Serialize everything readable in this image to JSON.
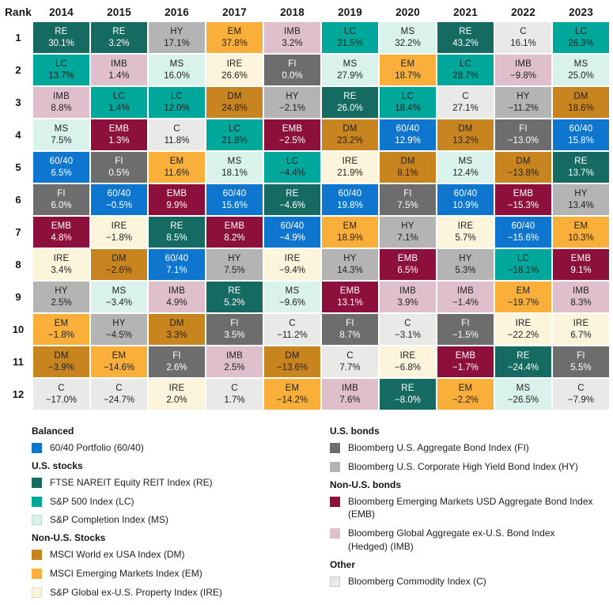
{
  "accent_text_dark": "#222222",
  "accent_text_light": "#ffffff",
  "assets": {
    "60/40": {
      "color": "#0f76d0",
      "text": "#ffffff"
    },
    "RE": {
      "color": "#156a62",
      "text": "#ffffff"
    },
    "LC": {
      "color": "#00a79b",
      "text": "#222222"
    },
    "MS": {
      "color": "#d9f2ec",
      "text": "#222222",
      "swatch_border": "#c2d6d1"
    },
    "DM": {
      "color": "#c8851f",
      "text": "#222222"
    },
    "EM": {
      "color": "#f9af3a",
      "text": "#222222"
    },
    "IRE": {
      "color": "#fdf4dc",
      "text": "#222222",
      "swatch_border": "#ddd5bf"
    },
    "FI": {
      "color": "#6d6d6d",
      "text": "#ffffff"
    },
    "HY": {
      "color": "#b4b4b4",
      "text": "#222222"
    },
    "EMB": {
      "color": "#8d103c",
      "text": "#ffffff"
    },
    "IMB": {
      "color": "#e0bfcd",
      "text": "#222222"
    },
    "C": {
      "color": "#e9e9e7",
      "text": "#222222",
      "swatch_border": "#c9c9c9"
    }
  },
  "chart_data": {
    "type": "table",
    "title": "",
    "columns": [
      "Rank",
      "2014",
      "2015",
      "2016",
      "2017",
      "2018",
      "2019",
      "2020",
      "2021",
      "2022",
      "2023"
    ],
    "rows": [
      {
        "rank": "1",
        "cells": [
          [
            "RE",
            "30.1%"
          ],
          [
            "RE",
            "3.2%"
          ],
          [
            "HY",
            "17.1%"
          ],
          [
            "EM",
            "37.8%"
          ],
          [
            "IMB",
            "3.2%"
          ],
          [
            "LC",
            "31.5%"
          ],
          [
            "MS",
            "32.2%"
          ],
          [
            "RE",
            "43.2%"
          ],
          [
            "C",
            "16.1%"
          ],
          [
            "LC",
            "26.3%"
          ]
        ]
      },
      {
        "rank": "2",
        "cells": [
          [
            "LC",
            "13.7%"
          ],
          [
            "IMB",
            "1.4%"
          ],
          [
            "MS",
            "16.0%"
          ],
          [
            "IRE",
            "26.6%"
          ],
          [
            "FI",
            "0.0%"
          ],
          [
            "MS",
            "27.9%"
          ],
          [
            "EM",
            "18.7%"
          ],
          [
            "LC",
            "28.7%"
          ],
          [
            "IMB",
            "−9.8%"
          ],
          [
            "MS",
            "25.0%"
          ]
        ]
      },
      {
        "rank": "3",
        "cells": [
          [
            "IMB",
            "8.8%"
          ],
          [
            "LC",
            "1.4%"
          ],
          [
            "LC",
            "12.0%"
          ],
          [
            "DM",
            "24.8%"
          ],
          [
            "HY",
            "−2.1%"
          ],
          [
            "RE",
            "26.0%"
          ],
          [
            "LC",
            "18.4%"
          ],
          [
            "C",
            "27.1%"
          ],
          [
            "HY",
            "−11.2%"
          ],
          [
            "DM",
            "18.6%"
          ]
        ]
      },
      {
        "rank": "4",
        "cells": [
          [
            "MS",
            "7.5%"
          ],
          [
            "EMB",
            "1.3%"
          ],
          [
            "C",
            "11.8%"
          ],
          [
            "LC",
            "21.8%"
          ],
          [
            "EMB",
            "−2.5%"
          ],
          [
            "DM",
            "23.2%"
          ],
          [
            "60/40",
            "12.9%"
          ],
          [
            "DM",
            "13.2%"
          ],
          [
            "FI",
            "−13.0%"
          ],
          [
            "60/40",
            "15.8%"
          ]
        ]
      },
      {
        "rank": "5",
        "cells": [
          [
            "60/40",
            "6.5%"
          ],
          [
            "FI",
            "0.5%"
          ],
          [
            "EM",
            "11.6%"
          ],
          [
            "MS",
            "18.1%"
          ],
          [
            "LC",
            "−4.4%"
          ],
          [
            "IRE",
            "21.9%"
          ],
          [
            "DM",
            "8.1%"
          ],
          [
            "MS",
            "12.4%"
          ],
          [
            "DM",
            "−13.8%"
          ],
          [
            "RE",
            "13.7%"
          ]
        ]
      },
      {
        "rank": "6",
        "cells": [
          [
            "FI",
            "6.0%"
          ],
          [
            "60/40",
            "−0.5%"
          ],
          [
            "EMB",
            "9.9%"
          ],
          [
            "60/40",
            "15.6%"
          ],
          [
            "RE",
            "−4.6%"
          ],
          [
            "60/40",
            "19.8%"
          ],
          [
            "FI",
            "7.5%"
          ],
          [
            "60/40",
            "10.9%"
          ],
          [
            "EMB",
            "−15.3%"
          ],
          [
            "HY",
            "13.4%"
          ]
        ]
      },
      {
        "rank": "7",
        "cells": [
          [
            "EMB",
            "4.8%"
          ],
          [
            "IRE",
            "−1.8%"
          ],
          [
            "RE",
            "8.5%"
          ],
          [
            "EMB",
            "8.2%"
          ],
          [
            "60/40",
            "−4.9%"
          ],
          [
            "EM",
            "18.9%"
          ],
          [
            "HY",
            "7.1%"
          ],
          [
            "IRE",
            "5.7%"
          ],
          [
            "60/40",
            "−15.6%"
          ],
          [
            "EM",
            "10.3%"
          ]
        ]
      },
      {
        "rank": "8",
        "cells": [
          [
            "IRE",
            "3.4%"
          ],
          [
            "DM",
            "−2.6%"
          ],
          [
            "60/40",
            "7.1%"
          ],
          [
            "HY",
            "7.5%"
          ],
          [
            "IRE",
            "−9.4%"
          ],
          [
            "HY",
            "14.3%"
          ],
          [
            "EMB",
            "6.5%"
          ],
          [
            "HY",
            "5.3%"
          ],
          [
            "LC",
            "−18.1%"
          ],
          [
            "EMB",
            "9.1%"
          ]
        ]
      },
      {
        "rank": "9",
        "cells": [
          [
            "HY",
            "2.5%"
          ],
          [
            "MS",
            "−3.4%"
          ],
          [
            "IMB",
            "4.9%"
          ],
          [
            "RE",
            "5.2%"
          ],
          [
            "MS",
            "−9.6%"
          ],
          [
            "EMB",
            "13.1%"
          ],
          [
            "IMB",
            "3.9%"
          ],
          [
            "IMB",
            "−1.4%"
          ],
          [
            "EM",
            "−19.7%"
          ],
          [
            "IMB",
            "8.3%"
          ]
        ]
      },
      {
        "rank": "10",
        "cells": [
          [
            "EM",
            "−1.8%"
          ],
          [
            "HY",
            "−4.5%"
          ],
          [
            "DM",
            "3.3%"
          ],
          [
            "FI",
            "3.5%"
          ],
          [
            "C",
            "−11.2%"
          ],
          [
            "FI",
            "8.7%"
          ],
          [
            "C",
            "−3.1%"
          ],
          [
            "FI",
            "−1.5%"
          ],
          [
            "IRE",
            "−22.2%"
          ],
          [
            "IRE",
            "6.7%"
          ]
        ]
      },
      {
        "rank": "11",
        "cells": [
          [
            "DM",
            "−3.9%"
          ],
          [
            "EM",
            "−14.6%"
          ],
          [
            "FI",
            "2.6%"
          ],
          [
            "IMB",
            "2.5%"
          ],
          [
            "DM",
            "−13.6%"
          ],
          [
            "C",
            "7.7%"
          ],
          [
            "IRE",
            "−6.8%"
          ],
          [
            "EMB",
            "−1.7%"
          ],
          [
            "RE",
            "−24.4%"
          ],
          [
            "FI",
            "5.5%"
          ]
        ]
      },
      {
        "rank": "12",
        "cells": [
          [
            "C",
            "−17.0%"
          ],
          [
            "C",
            "−24.7%"
          ],
          [
            "IRE",
            "2.0%"
          ],
          [
            "C",
            "1.7%"
          ],
          [
            "EM",
            "−14.2%"
          ],
          [
            "IMB",
            "7.6%"
          ],
          [
            "RE",
            "−8.0%"
          ],
          [
            "EM",
            "−2.2%"
          ],
          [
            "MS",
            "−26.5%"
          ],
          [
            "C",
            "−7.9%"
          ]
        ]
      }
    ]
  },
  "legend": {
    "left": [
      {
        "header": "Balanced",
        "items": [
          {
            "asset": "60/40",
            "label": "60/40 Portfolio (60/40)"
          }
        ]
      },
      {
        "header": "U.S. stocks",
        "items": [
          {
            "asset": "RE",
            "label": "FTSE NAREIT Equity REIT Index (RE)"
          },
          {
            "asset": "LC",
            "label": "S&P 500 Index (LC)"
          },
          {
            "asset": "MS",
            "label": "S&P Completion Index (MS)"
          }
        ]
      },
      {
        "header": "Non-U.S. Stocks",
        "items": [
          {
            "asset": "DM",
            "label": "MSCI World ex USA Index (DM)"
          },
          {
            "asset": "EM",
            "label": "MSCI Emerging Markets Index (EM)"
          },
          {
            "asset": "IRE",
            "label": "S&P Global ex-U.S. Property Index (IRE)"
          }
        ]
      }
    ],
    "right": [
      {
        "header": "U.S. bonds",
        "items": [
          {
            "asset": "FI",
            "label": "Bloomberg U.S. Aggregate Bond Index (FI)"
          },
          {
            "asset": "HY",
            "label": "Bloomberg U.S. Corporate High Yield Bond Index (HY)"
          }
        ]
      },
      {
        "header": "Non-U.S. bonds",
        "items": [
          {
            "asset": "EMB",
            "label": "Bloomberg Emerging Markets USD Aggregate Bond Index (EMB)"
          },
          {
            "asset": "IMB",
            "label": "Bloomberg Global Aggregate ex-U.S. Bond Index (Hedged) (IMB)"
          }
        ]
      },
      {
        "header": "Other",
        "items": [
          {
            "asset": "C",
            "label": "Bloomberg Commodity Index (C)"
          }
        ]
      }
    ]
  }
}
